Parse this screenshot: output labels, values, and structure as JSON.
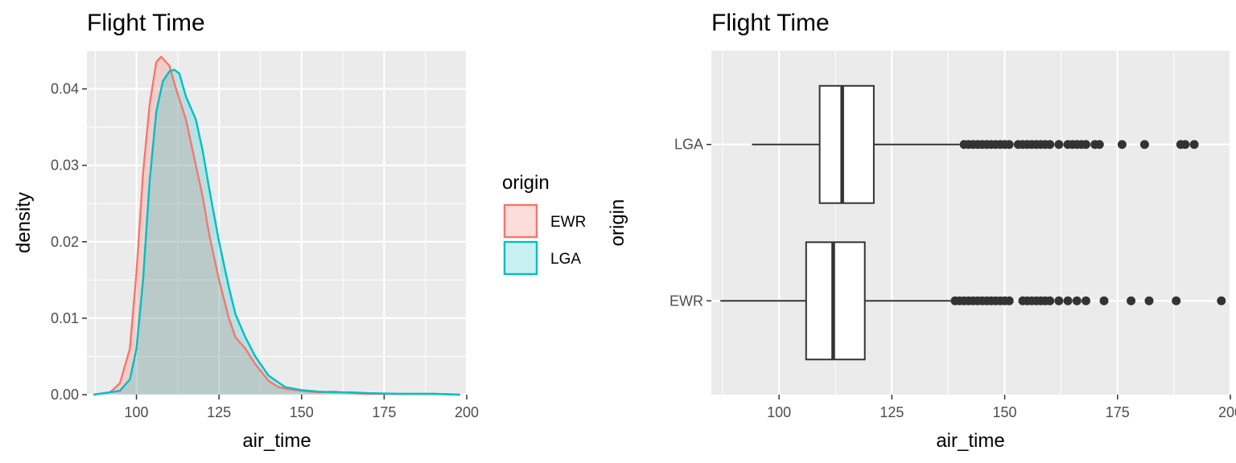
{
  "chart_data": [
    {
      "type": "area",
      "title": "Flight Time",
      "xlabel": "air_time",
      "ylabel": "density",
      "xlim": [
        85,
        200
      ],
      "ylim": [
        0,
        0.045
      ],
      "x_ticks": [
        100,
        125,
        150,
        175,
        200
      ],
      "y_ticks": [
        0.0,
        0.01,
        0.02,
        0.03,
        0.04
      ],
      "x_tick_labels": [
        "100",
        "125",
        "150",
        "175",
        "200"
      ],
      "y_tick_labels": [
        "0.00",
        "0.01",
        "0.02",
        "0.03",
        "0.04"
      ],
      "grid": true,
      "legend": {
        "title": "origin",
        "position": "right",
        "entries": [
          {
            "label": "EWR",
            "color": "#F8766D",
            "fill": "rgba(248,118,109,0.25)"
          },
          {
            "label": "LGA",
            "color": "#00BFC4",
            "fill": "rgba(0,191,196,0.22)"
          }
        ]
      },
      "series": [
        {
          "name": "EWR",
          "color": "#F8766D",
          "x": [
            87,
            92,
            95,
            98,
            100,
            102,
            104,
            106,
            107.5,
            110,
            112,
            115,
            118,
            120,
            122,
            125,
            128,
            130,
            133,
            136,
            140,
            143,
            146,
            150,
            155,
            160,
            165,
            170,
            180,
            190,
            198
          ],
          "y": [
            0.0,
            0.0003,
            0.0015,
            0.006,
            0.016,
            0.029,
            0.038,
            0.0435,
            0.0442,
            0.043,
            0.04,
            0.036,
            0.03,
            0.026,
            0.021,
            0.015,
            0.01,
            0.0075,
            0.006,
            0.004,
            0.0018,
            0.001,
            0.0007,
            0.0005,
            0.0003,
            0.0004,
            0.0002,
            0.0001,
            0.0001,
            0.0001,
            0.0
          ]
        },
        {
          "name": "LGA",
          "color": "#00BFC4",
          "x": [
            87,
            95,
            98,
            100,
            102,
            104,
            106,
            108,
            110,
            111.5,
            113,
            115,
            118,
            120,
            122,
            125,
            128,
            130,
            133,
            136,
            140,
            145,
            150,
            155,
            160,
            165,
            170,
            180,
            190,
            198
          ],
          "y": [
            0.0,
            0.0005,
            0.002,
            0.006,
            0.015,
            0.028,
            0.037,
            0.041,
            0.0423,
            0.0425,
            0.042,
            0.039,
            0.036,
            0.032,
            0.027,
            0.02,
            0.014,
            0.0105,
            0.0075,
            0.005,
            0.0025,
            0.001,
            0.0006,
            0.0004,
            0.0003,
            0.0003,
            0.0002,
            0.0001,
            0.0001,
            0.0
          ]
        }
      ]
    },
    {
      "type": "boxplot",
      "title": "Flight Time",
      "xlabel": "air_time",
      "ylabel": "origin",
      "xlim": [
        85,
        200
      ],
      "x_ticks": [
        100,
        125,
        150,
        175,
        200
      ],
      "x_tick_labels": [
        "100",
        "125",
        "150",
        "175",
        "200"
      ],
      "categories": [
        "EWR",
        "LGA"
      ],
      "grid": true,
      "boxes": [
        {
          "name": "EWR",
          "whisker_low": 87,
          "q1": 106,
          "median": 112,
          "q3": 119,
          "whisker_high": 138,
          "outliers": [
            139,
            140,
            141,
            142,
            143,
            144,
            145,
            146,
            147,
            148,
            149,
            150,
            151,
            154,
            155,
            156,
            157,
            158,
            159,
            160,
            162,
            164,
            166,
            168,
            172,
            178,
            182,
            188,
            198
          ]
        },
        {
          "name": "LGA",
          "whisker_low": 94,
          "q1": 109,
          "median": 114,
          "q3": 121,
          "whisker_high": 140,
          "outliers": [
            141,
            142,
            143,
            144,
            145,
            146,
            147,
            148,
            149,
            150,
            151,
            153,
            154,
            155,
            156,
            157,
            158,
            159,
            160,
            162,
            164,
            165,
            166,
            167,
            168,
            170,
            171,
            176,
            181,
            189,
            190,
            192
          ]
        }
      ]
    }
  ]
}
